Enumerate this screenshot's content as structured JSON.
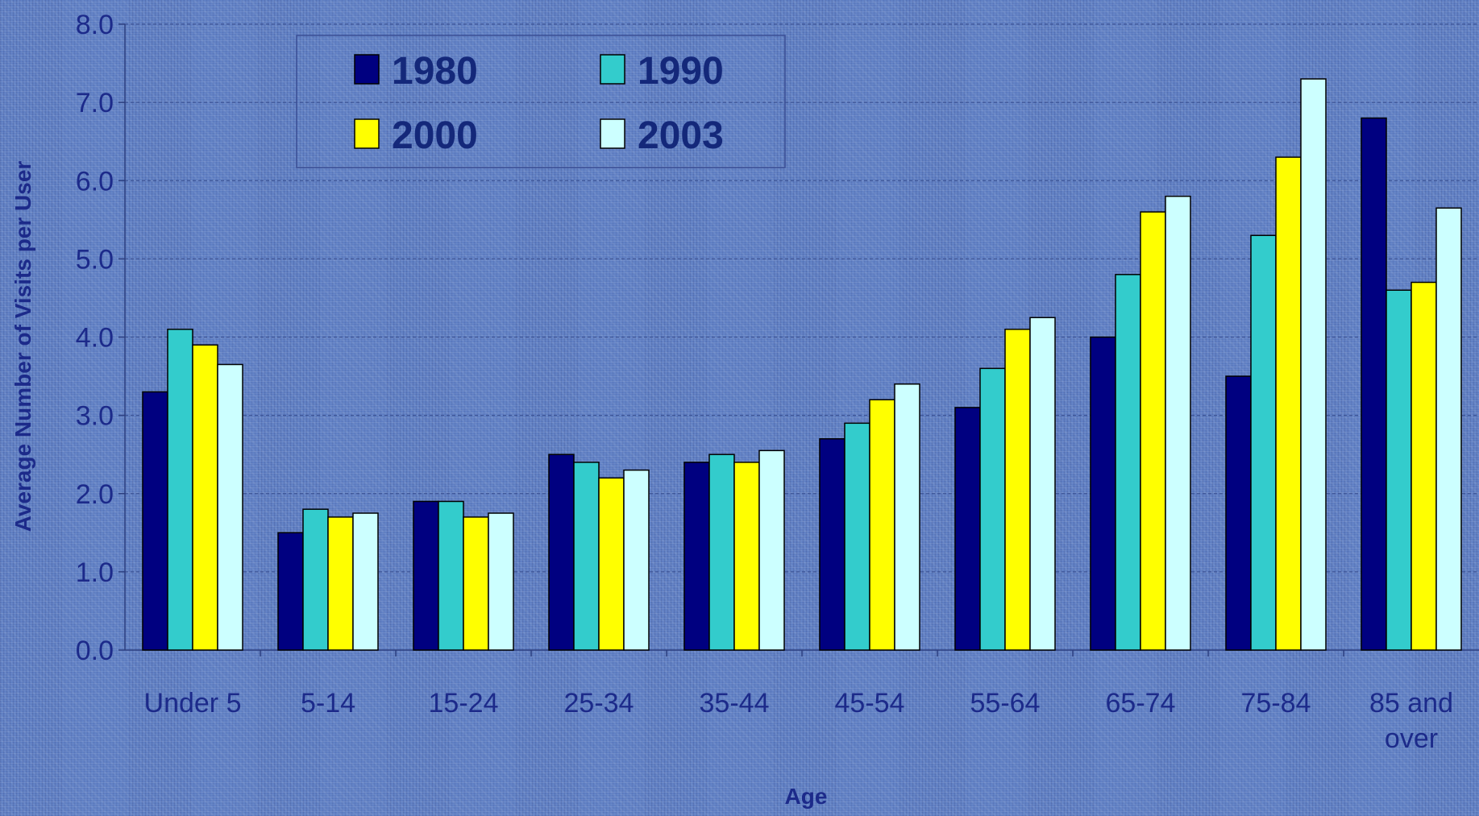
{
  "chart_data": {
    "type": "bar",
    "title": "",
    "xlabel": "Age",
    "ylabel": "Average Number of Visits per User",
    "ylim": [
      0,
      8
    ],
    "yticks": [
      "0.0",
      "1.0",
      "2.0",
      "3.0",
      "4.0",
      "5.0",
      "6.0",
      "7.0",
      "8.0"
    ],
    "grid": true,
    "legend_position": "top-left",
    "categories": [
      "Under 5",
      "5-14",
      "15-24",
      "25-34",
      "35-44",
      "45-54",
      "55-64",
      "65-74",
      "75-84",
      "85 and over"
    ],
    "series": [
      {
        "name": "1980",
        "color": "#000080",
        "values": [
          3.3,
          1.5,
          1.9,
          2.5,
          2.4,
          2.7,
          3.1,
          4.0,
          3.5,
          6.8
        ]
      },
      {
        "name": "1990",
        "color": "#33cccc",
        "values": [
          4.1,
          1.8,
          1.9,
          2.4,
          2.5,
          2.9,
          3.6,
          4.8,
          5.3,
          4.6
        ]
      },
      {
        "name": "2000",
        "color": "#ffff00",
        "values": [
          3.9,
          1.7,
          1.7,
          2.2,
          2.4,
          3.2,
          4.1,
          5.6,
          6.3,
          4.7
        ]
      },
      {
        "name": "2003",
        "color": "#ccffff",
        "values": [
          3.65,
          1.75,
          1.75,
          2.3,
          2.55,
          3.4,
          4.25,
          5.8,
          7.3,
          5.65
        ]
      }
    ]
  }
}
